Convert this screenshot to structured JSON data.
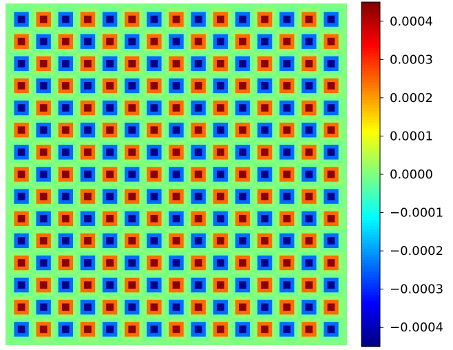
{
  "chart_data": {
    "type": "heatmap",
    "title": "",
    "xlabel": "",
    "ylabel": "",
    "colormap": "jet",
    "value_range": [
      -0.00045,
      0.00045
    ],
    "pattern": {
      "period_rows": 2,
      "period_cols": 2,
      "tiles_x": 15,
      "tiles_y": 15,
      "amplitude": 0.00044,
      "border_value": 0.0
    },
    "colorbar": {
      "ticks": [
        0.0004,
        0.0003,
        0.0002,
        0.0001,
        0.0,
        -0.0001,
        -0.0002,
        -0.0003,
        -0.0004
      ],
      "tick_labels": [
        "0.0004",
        "0.0003",
        "0.0002",
        "0.0001",
        "0.0000",
        "−0.0001",
        "−0.0002",
        "−0.0003",
        "−0.0004"
      ]
    }
  }
}
